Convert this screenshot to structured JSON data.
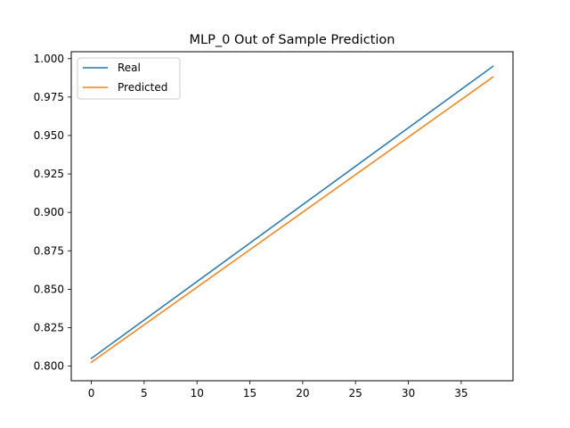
{
  "chart_data": {
    "type": "line",
    "title": "MLP_0 Out of Sample Prediction",
    "xlabel": "",
    "ylabel": "",
    "xlim": [
      -1.9,
      39.9
    ],
    "ylim": [
      0.7905,
      1.0045
    ],
    "xticks": [
      0,
      5,
      10,
      15,
      20,
      25,
      30,
      35
    ],
    "xtick_labels": [
      "0",
      "5",
      "10",
      "15",
      "20",
      "25",
      "30",
      "35"
    ],
    "yticks": [
      0.8,
      0.825,
      0.85,
      0.875,
      0.9,
      0.925,
      0.95,
      0.975,
      1.0
    ],
    "ytick_labels": [
      "0.800",
      "0.825",
      "0.850",
      "0.875",
      "0.900",
      "0.925",
      "0.950",
      "0.975",
      "1.000"
    ],
    "grid": false,
    "legend_position": "top-left",
    "series": [
      {
        "name": "Real",
        "color": "#1f77b4",
        "x_start": 0,
        "x_end": 38,
        "y_start": 0.805,
        "y_end": 0.995
      },
      {
        "name": "Predicted",
        "color": "#ff7f0e",
        "x_start": 0,
        "x_end": 38,
        "y_start": 0.8025,
        "y_end": 0.988
      }
    ]
  }
}
